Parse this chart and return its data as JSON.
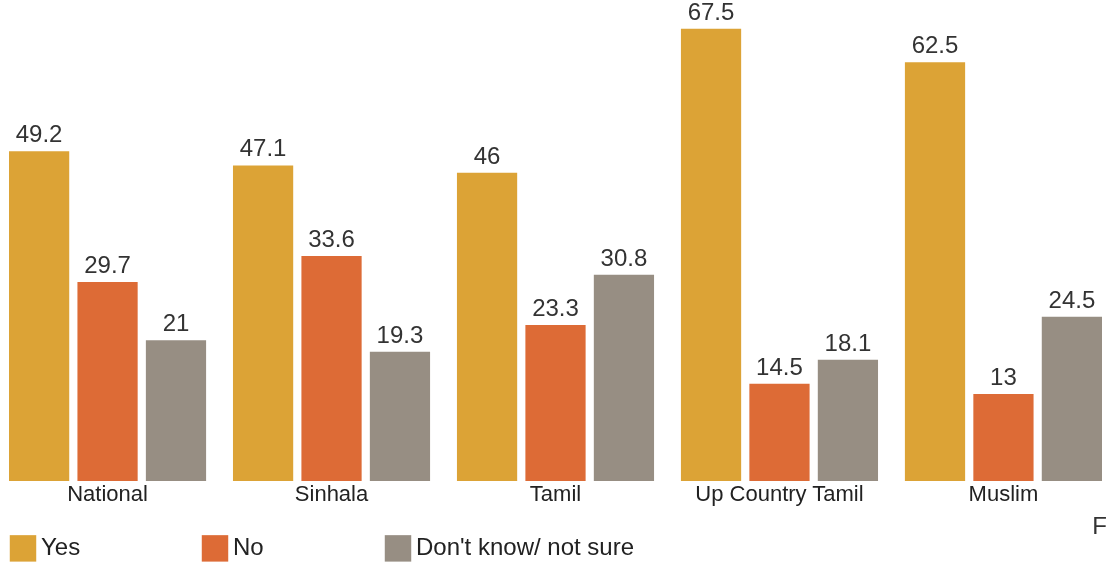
{
  "chart_data": {
    "type": "bar",
    "categories": [
      "National",
      "Sinhala",
      "Tamil",
      "Up Country Tamil",
      "Muslim"
    ],
    "series": [
      {
        "name": "Yes",
        "color": "#dca336",
        "values": [
          49.2,
          47.1,
          46,
          67.5,
          62.5
        ]
      },
      {
        "name": "No",
        "color": "#dd6b36",
        "values": [
          29.7,
          33.6,
          23.3,
          14.5,
          13
        ]
      },
      {
        "name": "Don't know/ not sure",
        "color": "#978e83",
        "values": [
          21,
          19.3,
          30.8,
          18.1,
          24.5
        ]
      }
    ],
    "data_labels": true,
    "legend": "bottom",
    "grid": false,
    "tick_labels": "x",
    "annotations": [
      "F"
    ]
  }
}
